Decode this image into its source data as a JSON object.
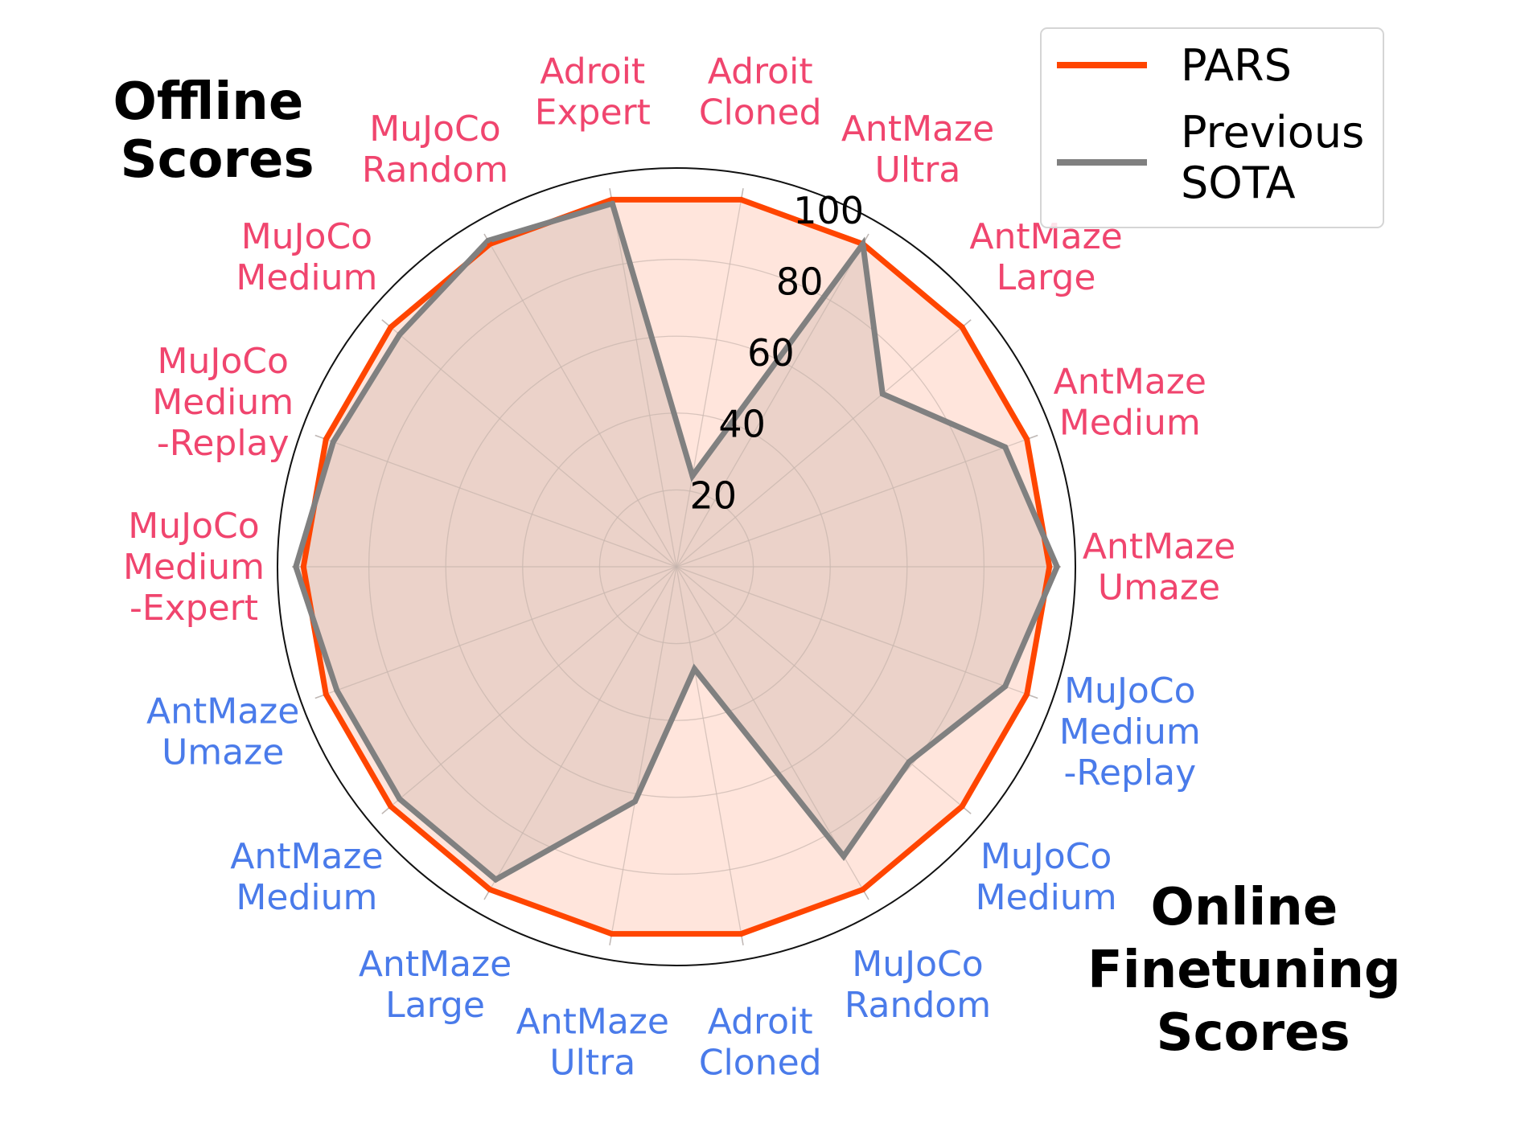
{
  "chart_data": {
    "type": "radar",
    "rlim": [
      0,
      100
    ],
    "r_ticks": [
      "20",
      "40",
      "60",
      "80",
      "100"
    ],
    "r_tick_values": [
      20,
      40,
      60,
      80,
      100
    ],
    "grid": true,
    "legend_position": "top-right",
    "group_titles": [
      {
        "lines": [
          "Offline",
          "Scores"
        ],
        "color": "#f0456e"
      },
      {
        "lines": [
          "Online",
          "Finetuning",
          "Scores"
        ],
        "color": "#4a7bea"
      }
    ],
    "categories": [
      {
        "lines": [
          "AntMaze",
          "Umaze"
        ],
        "group": "offline"
      },
      {
        "lines": [
          "AntMaze",
          "Medium"
        ],
        "group": "offline"
      },
      {
        "lines": [
          "AntMaze",
          "Large"
        ],
        "group": "offline"
      },
      {
        "lines": [
          "AntMaze",
          "Ultra"
        ],
        "group": "offline"
      },
      {
        "lines": [
          "Adroit",
          "Cloned"
        ],
        "group": "offline"
      },
      {
        "lines": [
          "Adroit",
          "Expert"
        ],
        "group": "offline"
      },
      {
        "lines": [
          "MuJoCo",
          "Random"
        ],
        "group": "offline"
      },
      {
        "lines": [
          "MuJoCo",
          "Medium"
        ],
        "group": "offline"
      },
      {
        "lines": [
          "MuJoCo",
          "Medium",
          "-Replay"
        ],
        "group": "offline"
      },
      {
        "lines": [
          "MuJoCo",
          "Medium",
          "-Expert"
        ],
        "group": "offline"
      },
      {
        "lines": [
          "AntMaze",
          "Umaze"
        ],
        "group": "online"
      },
      {
        "lines": [
          "AntMaze",
          "Medium"
        ],
        "group": "online"
      },
      {
        "lines": [
          "AntMaze",
          "Large"
        ],
        "group": "online"
      },
      {
        "lines": [
          "AntMaze",
          "Ultra"
        ],
        "group": "online"
      },
      {
        "lines": [
          "Adroit",
          "Cloned"
        ],
        "group": "online"
      },
      {
        "lines": [
          "MuJoCo",
          "Random"
        ],
        "group": "online"
      },
      {
        "lines": [
          "MuJoCo",
          "Medium"
        ],
        "group": "online"
      },
      {
        "lines": [
          "MuJoCo",
          "Medium",
          "-Replay"
        ],
        "group": "online"
      }
    ],
    "group_colors": {
      "offline": "#f0456e",
      "online": "#4a7bea"
    },
    "series": [
      {
        "name": "PARS",
        "color": "#ff4500",
        "fill": "#ffe0d6",
        "values": [
          97,
          97,
          97,
          97,
          97,
          97,
          97,
          97,
          97,
          97,
          97,
          97,
          97,
          97,
          97,
          97,
          97,
          97
        ]
      },
      {
        "name": "Previous SOTA",
        "legend_lines": [
          "Previous",
          "SOTA"
        ],
        "color": "#808080",
        "values": [
          99,
          91,
          70,
          97,
          24,
          96,
          98,
          94,
          95,
          99,
          94,
          94,
          94,
          62,
          27,
          87,
          79,
          91
        ]
      }
    ]
  }
}
